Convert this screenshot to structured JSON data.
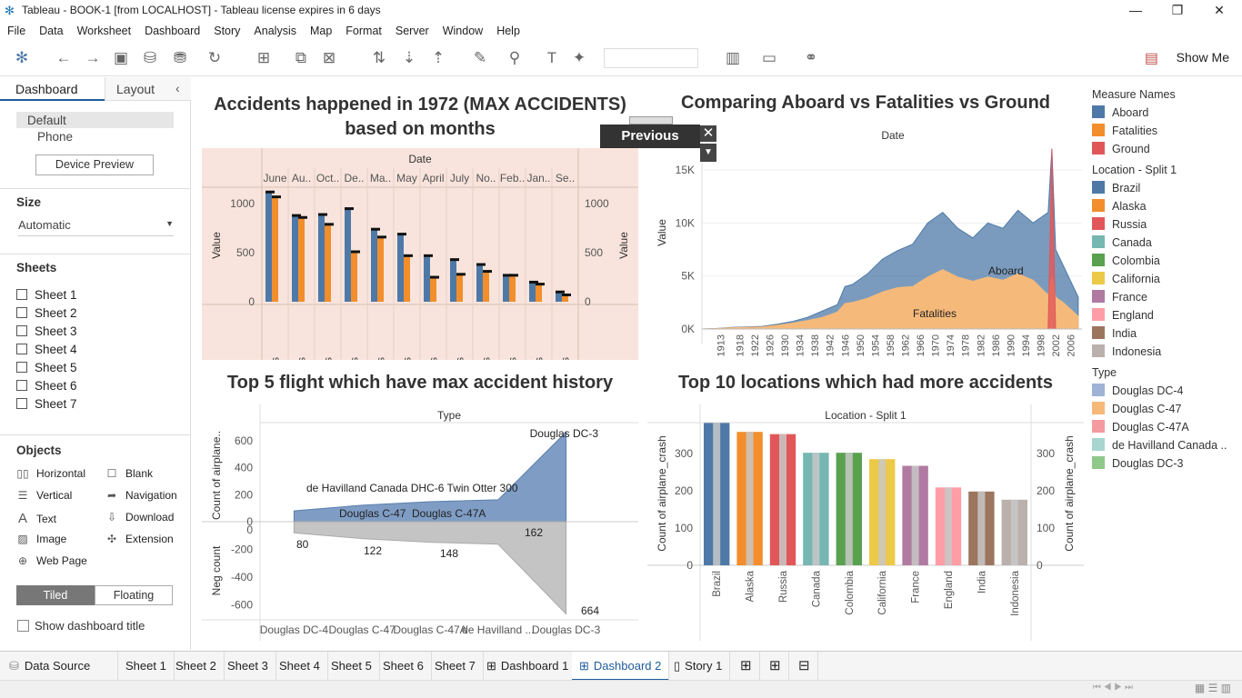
{
  "window": {
    "title": "Tableau - BOOK-1 [from LOCALHOST] - Tableau license expires in 6 days"
  },
  "menu": [
    "File",
    "Data",
    "Worksheet",
    "Dashboard",
    "Story",
    "Analysis",
    "Map",
    "Format",
    "Server",
    "Window",
    "Help"
  ],
  "toolbar": {
    "show_me": "Show Me"
  },
  "left": {
    "tab_dashboard": "Dashboard",
    "tab_layout": "Layout",
    "device_default": "Default",
    "device_phone": "Phone",
    "device_preview": "Device Preview",
    "size_label": "Size",
    "size_value": "Automatic",
    "sheets_label": "Sheets",
    "sheets": [
      "Sheet 1",
      "Sheet 2",
      "Sheet 3",
      "Sheet 4",
      "Sheet 5",
      "Sheet 6",
      "Sheet 7"
    ],
    "objects_label": "Objects",
    "objects": {
      "horizontal": "Horizontal",
      "blank": "Blank",
      "vertical": "Vertical",
      "navigation": "Navigation",
      "text": "Text",
      "download": "Download",
      "image": "Image",
      "extension": "Extension",
      "webpage": "Web Page"
    },
    "tiled": "Tiled",
    "floating": "Floating",
    "show_title": "Show dashboard title"
  },
  "nav_button": {
    "label": "Previous"
  },
  "legend": {
    "measure_title": "Measure Names",
    "measures": [
      {
        "name": "Aboard",
        "color": "#4e79a7"
      },
      {
        "name": "Fatalities",
        "color": "#f28e2b"
      },
      {
        "name": "Ground",
        "color": "#e15759"
      }
    ],
    "location_title": "Location - Split 1",
    "locations": [
      {
        "name": "Brazil",
        "color": "#4e79a7"
      },
      {
        "name": "Alaska",
        "color": "#f28e2b"
      },
      {
        "name": "Russia",
        "color": "#e15759"
      },
      {
        "name": "Canada",
        "color": "#76b7b2"
      },
      {
        "name": "Colombia",
        "color": "#59a14f"
      },
      {
        "name": "California",
        "color": "#edc948"
      },
      {
        "name": "France",
        "color": "#b07aa1"
      },
      {
        "name": "England",
        "color": "#ff9da7"
      },
      {
        "name": "India",
        "color": "#9c755f"
      },
      {
        "name": "Indonesia",
        "color": "#bab0ac"
      }
    ],
    "type_title": "Type",
    "types": [
      {
        "name": "Douglas DC-4",
        "color": "#9fb3d6"
      },
      {
        "name": "Douglas C-47",
        "color": "#f5b97a"
      },
      {
        "name": "Douglas C-47A",
        "color": "#f49ba0"
      },
      {
        "name": "de Havilland Canada ..",
        "color": "#a8d5d0"
      },
      {
        "name": "Douglas DC-3",
        "color": "#8fc98a"
      }
    ]
  },
  "bottom_tabs": [
    "Data Source",
    "Sheet 1",
    "Sheet 2",
    "Sheet 3",
    "Sheet 4",
    "Sheet 5",
    "Sheet 6",
    "Sheet 7",
    "Dashboard 1",
    "Dashboard 2",
    "Story 1"
  ],
  "chart_data": [
    {
      "type": "bar",
      "title": "Accidents happened in 1972 (MAX ACCIDENTS) based on months",
      "header": "Date",
      "categories": [
        "June",
        "Au..",
        "Oct..",
        "De..",
        "Ma..",
        "May",
        "April",
        "July",
        "No..",
        "Feb..",
        "Jan..",
        "Se.."
      ],
      "series": [
        {
          "name": "Aboard",
          "values": [
            1120,
            880,
            890,
            950,
            740,
            690,
            470,
            430,
            380,
            270,
            200,
            100
          ]
        },
        {
          "name": "Fatalities",
          "values": [
            1070,
            860,
            790,
            510,
            660,
            470,
            250,
            280,
            310,
            270,
            180,
            70
          ]
        }
      ],
      "markers": [
        0,
        0,
        0,
        0,
        0,
        0,
        0,
        0,
        0,
        0,
        0,
        0
      ],
      "column_label": "Fatalities",
      "ylabel": "Value",
      "yticks": [
        0,
        500,
        1000
      ],
      "ylim": [
        0,
        1150
      ]
    },
    {
      "type": "area",
      "title": "Comparing Aboard vs Fatalities vs Ground",
      "header": "Date",
      "xticks": [
        "1913",
        "1918",
        "1922",
        "1926",
        "1930",
        "1934",
        "1938",
        "1942",
        "1946",
        "1950",
        "1954",
        "1958",
        "1962",
        "1966",
        "1970",
        "1974",
        "1978",
        "1982",
        "1986",
        "1990",
        "1994",
        "1998",
        "2002",
        "2006"
      ],
      "ylabel": "Value",
      "yticks": [
        "0K",
        "5K",
        "10K",
        "15K"
      ],
      "ylim": [
        0,
        18000
      ],
      "annotations": [
        "Aboard",
        "Fatalities"
      ],
      "years": [
        1908,
        1912,
        1916,
        1920,
        1924,
        1928,
        1932,
        1936,
        1940,
        1944,
        1946,
        1948,
        1952,
        1956,
        1960,
        1964,
        1968,
        1972,
        1976,
        1980,
        1984,
        1988,
        1992,
        1996,
        2000,
        2001,
        2002,
        2004,
        2008
      ],
      "aboard": [
        0,
        50,
        150,
        200,
        250,
        450,
        700,
        1100,
        1700,
        2300,
        4000,
        4200,
        5200,
        6600,
        7400,
        8000,
        10000,
        11000,
        9500,
        8600,
        10000,
        9500,
        11200,
        10000,
        11000,
        17000,
        7500,
        6000,
        3000
      ],
      "fatalities": [
        0,
        40,
        120,
        150,
        200,
        350,
        550,
        800,
        1100,
        1600,
        2400,
        2500,
        2900,
        3500,
        3900,
        4000,
        4900,
        5600,
        4900,
        4500,
        4900,
        4600,
        5200,
        4600,
        3200,
        5000,
        3000,
        2500,
        1200
      ],
      "ground": [
        0,
        0,
        0,
        0,
        0,
        0,
        0,
        0,
        0,
        0,
        0,
        0,
        0,
        0,
        0,
        0,
        0,
        0,
        0,
        0,
        0,
        0,
        0,
        0,
        0,
        17000,
        0,
        0,
        0
      ]
    },
    {
      "type": "area",
      "title": "Top 5 flight which have max accident history",
      "header": "Type",
      "categories": [
        "Douglas DC-4",
        "Douglas C-47",
        "Douglas C-47A",
        "de Havilland ...",
        "Douglas DC-3"
      ],
      "full_names": [
        "Douglas DC-4",
        "Douglas C-47",
        "Douglas C-47A",
        "de Havilland Canada DHC-6 Twin Otter 300",
        "Douglas DC-3"
      ],
      "values": [
        80,
        122,
        148,
        162,
        664
      ],
      "ylabel_top": "Count of airplane..",
      "ylabel_bottom": "Neg count",
      "yticks_top": [
        0,
        200,
        400,
        600
      ],
      "yticks_bottom": [
        0,
        -200,
        -400,
        -600
      ]
    },
    {
      "type": "bar",
      "title": "Top 10 locations which had more accidents",
      "header": "Location - Split 1",
      "categories": [
        "Brazil",
        "Alaska",
        "Russia",
        "Canada",
        "Colombia",
        "California",
        "France",
        "England",
        "India",
        "Indonesia"
      ],
      "values": [
        382,
        358,
        352,
        302,
        302,
        285,
        267,
        209,
        198,
        176
      ],
      "ylabel": "Count of airplane_crash",
      "yticks": [
        0,
        100,
        200,
        300
      ],
      "ylim": [
        0,
        400
      ]
    }
  ]
}
